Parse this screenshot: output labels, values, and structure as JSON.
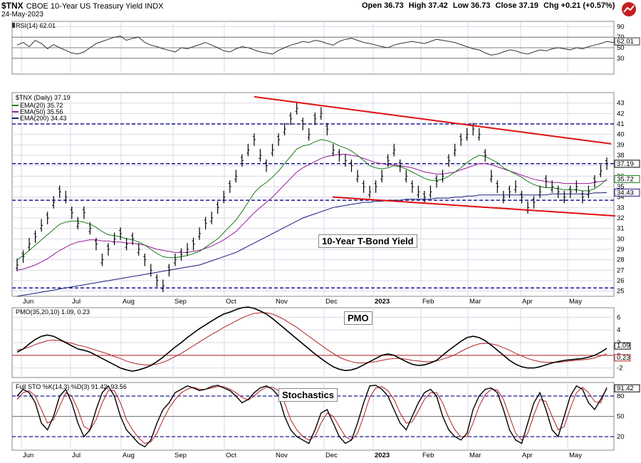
{
  "header": {
    "symbol": "$TNX",
    "description": "CBOE 10-Year US Treasury Yield INDX",
    "date": "24-May-2023",
    "open": "Open 36.73",
    "high": "High 37.42",
    "low": "Low 36.73",
    "close": "Close 37.19",
    "chg": "Chg +0.21 (+0.57%)"
  },
  "annotations": {
    "main": "10-Year T-Bond Yield",
    "pmo": "PMO",
    "sto": "Stochastics"
  },
  "chart_data": [
    {
      "type": "line",
      "title": "RSI(14) 62.01",
      "series": [
        {
          "name": "RSI(14)",
          "last": 62.01
        }
      ],
      "y_ticks": [
        90,
        70,
        50,
        30
      ],
      "reference_lines": [
        70,
        50,
        30
      ],
      "last_label": "62.01",
      "values": [
        55,
        60,
        52,
        64,
        58,
        48,
        56,
        50,
        45,
        40,
        38,
        42,
        50,
        58,
        62,
        66,
        70,
        72,
        64,
        68,
        70,
        60,
        55,
        52,
        48,
        45,
        42,
        50,
        48,
        52,
        56,
        60,
        55,
        50,
        44,
        42,
        48,
        52,
        50,
        46,
        42,
        40,
        38,
        45,
        50,
        55,
        58,
        62,
        60,
        64,
        62,
        58,
        55,
        62,
        66,
        68,
        64,
        60,
        58,
        55,
        52,
        50,
        55,
        58,
        60,
        62,
        60,
        58,
        62,
        66,
        64,
        62,
        60,
        56,
        52,
        48,
        46,
        40,
        36,
        38,
        42,
        46,
        44,
        40,
        38,
        42,
        46,
        44,
        48,
        50,
        48,
        46,
        50,
        48,
        52,
        55,
        58,
        62,
        60,
        62
      ]
    },
    {
      "type": "bar",
      "title": "$TNX (Daily) 37.19",
      "series": [
        {
          "name": "$TNX (Daily)",
          "last": 37.19
        },
        {
          "name": "EMA(20)",
          "last": 35.72,
          "color": "#1a7a1a"
        },
        {
          "name": "EMA(50)",
          "last": 35.56,
          "color": "#9a1a9a"
        },
        {
          "name": "EMA(200)",
          "last": 34.43,
          "color": "#1a1a80"
        }
      ],
      "x_labels": [
        "Jun",
        "Jul",
        "Aug",
        "Sep",
        "Oct",
        "Nov",
        "Dec",
        "2023",
        "Feb",
        "Mar",
        "Apr",
        "May"
      ],
      "y_ticks": [
        43,
        42,
        41,
        40,
        39,
        38,
        37,
        36,
        35,
        34,
        33,
        32,
        31,
        30,
        29,
        28,
        27,
        26,
        25
      ],
      "horizontal_levels": [
        41,
        37.2,
        33.7,
        25.3
      ],
      "right_labels": [
        "37.19",
        "35.72",
        "34.43"
      ],
      "trendlines": [
        {
          "from": [
            "Oct",
            43.6
          ],
          "to": [
            "Jun 2023",
            39.1
          ]
        },
        {
          "from": [
            "Dec",
            34.0
          ],
          "to": [
            "Jun 2023",
            32.2
          ]
        }
      ],
      "price": [
        27.5,
        28.3,
        29.5,
        30.2,
        31.3,
        32.0,
        33.5,
        34.5,
        34.0,
        32.5,
        31.5,
        32.5,
        31.0,
        29.5,
        28.0,
        29.0,
        30.0,
        30.5,
        29.5,
        30.0,
        29.0,
        28.0,
        27.0,
        26.0,
        25.5,
        27.0,
        28.0,
        28.5,
        29.0,
        29.5,
        30.5,
        31.5,
        32.0,
        33.0,
        34.0,
        35.0,
        36.0,
        37.5,
        38.5,
        39.5,
        38.0,
        37.0,
        38.5,
        39.5,
        40.5,
        41.5,
        42.5,
        41.0,
        40.0,
        41.5,
        42.0,
        40.5,
        38.5,
        38.0,
        37.5,
        37.0,
        36.0,
        35.0,
        34.5,
        35.0,
        36.0,
        37.5,
        38.5,
        37.0,
        36.0,
        35.0,
        34.5,
        34.0,
        34.5,
        35.5,
        36.0,
        37.5,
        38.5,
        39.5,
        40.0,
        40.5,
        40.0,
        38.0,
        36.0,
        35.0,
        34.0,
        34.5,
        35.0,
        34.0,
        33.0,
        33.5,
        34.5,
        35.5,
        35.0,
        34.5,
        34.0,
        34.5,
        35.0,
        34.0,
        34.5,
        35.5,
        36.5,
        37.19
      ],
      "ema20": [
        28.0,
        28.4,
        28.9,
        29.4,
        29.9,
        30.4,
        30.9,
        31.4,
        31.6,
        31.7,
        31.7,
        31.6,
        31.4,
        31.1,
        30.7,
        30.4,
        30.3,
        30.2,
        30.0,
        29.9,
        29.7,
        29.4,
        29.0,
        28.6,
        28.3,
        28.2,
        28.2,
        28.3,
        28.4,
        28.6,
        28.8,
        29.2,
        29.6,
        30.0,
        30.6,
        31.2,
        31.8,
        32.6,
        33.5,
        34.4,
        35.0,
        35.4,
        35.9,
        36.5,
        37.2,
        37.9,
        38.6,
        38.9,
        39.0,
        39.3,
        39.5,
        39.4,
        39.2,
        38.9,
        38.7,
        38.4,
        38.0,
        37.5,
        37.0,
        36.8,
        36.7,
        36.8,
        37.0,
        36.9,
        36.7,
        36.4,
        36.1,
        35.8,
        35.6,
        35.6,
        35.7,
        36.0,
        36.4,
        36.8,
        37.3,
        37.7,
        38.0,
        37.9,
        37.6,
        37.3,
        36.8,
        36.5,
        36.2,
        35.9,
        35.5,
        35.2,
        35.0,
        34.9,
        34.9,
        34.8,
        34.7,
        34.7,
        34.7,
        34.6,
        34.6,
        34.8,
        35.2,
        35.72
      ],
      "ema50": [
        27.0,
        27.1,
        27.3,
        27.5,
        27.8,
        28.1,
        28.5,
        28.9,
        29.2,
        29.5,
        29.7,
        29.8,
        29.9,
        29.9,
        29.8,
        29.8,
        29.7,
        29.7,
        29.6,
        29.6,
        29.5,
        29.4,
        29.2,
        29.0,
        28.9,
        28.8,
        28.7,
        28.7,
        28.7,
        28.8,
        28.9,
        29.1,
        29.3,
        29.6,
        29.9,
        30.3,
        30.7,
        31.3,
        31.9,
        32.5,
        33.0,
        33.5,
        34.0,
        34.6,
        35.2,
        35.8,
        36.4,
        36.8,
        37.1,
        37.4,
        37.7,
        37.9,
        38.0,
        38.1,
        38.1,
        38.0,
        37.9,
        37.7,
        37.5,
        37.3,
        37.2,
        37.1,
        37.1,
        37.0,
        36.9,
        36.8,
        36.6,
        36.4,
        36.3,
        36.2,
        36.2,
        36.3,
        36.4,
        36.6,
        36.8,
        37.0,
        37.2,
        37.2,
        37.1,
        36.9,
        36.7,
        36.5,
        36.3,
        36.1,
        35.9,
        35.7,
        35.6,
        35.5,
        35.4,
        35.4,
        35.3,
        35.3,
        35.3,
        35.3,
        35.3,
        35.4,
        35.5,
        35.56
      ],
      "ema200": [
        24.5,
        24.6,
        24.7,
        24.8,
        24.9,
        25.0,
        25.1,
        25.2,
        25.3,
        25.4,
        25.5,
        25.6,
        25.7,
        25.8,
        25.9,
        26.0,
        26.1,
        26.2,
        26.3,
        26.4,
        26.5,
        26.6,
        26.7,
        26.8,
        26.9,
        27.0,
        27.1,
        27.2,
        27.3,
        27.4,
        27.5,
        27.7,
        27.9,
        28.1,
        28.3,
        28.5,
        28.7,
        29.0,
        29.3,
        29.6,
        29.9,
        30.2,
        30.5,
        30.8,
        31.1,
        31.4,
        31.7,
        32.0,
        32.2,
        32.4,
        32.6,
        32.8,
        33.0,
        33.1,
        33.2,
        33.3,
        33.4,
        33.5,
        33.5,
        33.6,
        33.6,
        33.7,
        33.7,
        33.7,
        33.8,
        33.8,
        33.8,
        33.8,
        33.8,
        33.9,
        33.9,
        33.9,
        34.0,
        34.0,
        34.1,
        34.1,
        34.2,
        34.2,
        34.2,
        34.2,
        34.2,
        34.2,
        34.2,
        34.2,
        34.2,
        34.2,
        34.2,
        34.2,
        34.3,
        34.3,
        34.3,
        34.3,
        34.3,
        34.3,
        34.3,
        34.4,
        34.4,
        34.43
      ]
    },
    {
      "type": "line",
      "title": "PMO(35,20,10) 1.09, 0.23",
      "series": [
        {
          "name": "PMO",
          "last": 1.09,
          "color": "#000000"
        },
        {
          "name": "Signal",
          "last": 0.23,
          "color": "#b22222"
        }
      ],
      "y_ticks": [
        6,
        4,
        2,
        0,
        -2
      ],
      "right_labels": [
        "1.09",
        "0.23"
      ],
      "pmo": [
        0.5,
        1.0,
        1.8,
        2.5,
        3.0,
        3.2,
        3.0,
        2.5,
        2.0,
        1.5,
        1.0,
        0.8,
        0.5,
        0.0,
        -0.5,
        -1.0,
        -1.5,
        -2.0,
        -2.3,
        -2.5,
        -2.3,
        -2.0,
        -1.6,
        -1.0,
        -0.3,
        0.5,
        1.3,
        2.0,
        2.8,
        3.5,
        4.2,
        4.8,
        5.4,
        6.0,
        6.5,
        6.8,
        7.2,
        7.5,
        7.6,
        7.4,
        7.0,
        6.5,
        5.8,
        5.0,
        4.2,
        3.4,
        2.6,
        1.8,
        1.0,
        0.2,
        -0.5,
        -1.2,
        -1.8,
        -2.2,
        -2.4,
        -2.3,
        -2.0,
        -1.5,
        -1.0,
        -0.5,
        0.0,
        0.2,
        0.0,
        -0.5,
        -1.0,
        -1.4,
        -1.6,
        -1.5,
        -1.2,
        -0.8,
        0.0,
        0.8,
        1.5,
        2.2,
        2.8,
        3.0,
        2.8,
        2.3,
        1.6,
        0.8,
        0.0,
        -0.8,
        -1.4,
        -1.8,
        -2.0,
        -2.0,
        -1.8,
        -1.5,
        -1.2,
        -1.0,
        -0.8,
        -0.7,
        -0.6,
        -0.5,
        -0.3,
        0.0,
        0.5,
        1.09
      ],
      "signal": [
        0.8,
        1.0,
        1.3,
        1.7,
        2.0,
        2.3,
        2.4,
        2.3,
        2.1,
        1.9,
        1.6,
        1.4,
        1.1,
        0.8,
        0.5,
        0.2,
        -0.2,
        -0.5,
        -0.9,
        -1.2,
        -1.4,
        -1.5,
        -1.5,
        -1.4,
        -1.1,
        -0.7,
        -0.2,
        0.3,
        0.9,
        1.5,
        2.1,
        2.7,
        3.3,
        3.8,
        4.4,
        4.9,
        5.4,
        5.9,
        6.3,
        6.6,
        6.7,
        6.7,
        6.5,
        6.1,
        5.6,
        5.0,
        4.4,
        3.7,
        3.0,
        2.3,
        1.6,
        0.9,
        0.3,
        -0.3,
        -0.7,
        -1.0,
        -1.2,
        -1.2,
        -1.1,
        -1.0,
        -0.8,
        -0.6,
        -0.5,
        -0.5,
        -0.6,
        -0.8,
        -0.9,
        -1.0,
        -1.0,
        -0.9,
        -0.6,
        -0.3,
        0.1,
        0.6,
        1.1,
        1.5,
        1.8,
        1.9,
        1.8,
        1.6,
        1.2,
        0.8,
        0.3,
        -0.1,
        -0.5,
        -0.8,
        -1.0,
        -1.1,
        -1.1,
        -1.1,
        -1.0,
        -0.9,
        -0.8,
        -0.7,
        -0.6,
        -0.4,
        -0.1,
        0.23
      ]
    },
    {
      "type": "line",
      "title": "Full STO %K(14,3) %D(3) 91.42, 93.56",
      "series": [
        {
          "name": "%K(14,3)",
          "last": 91.42,
          "color": "#000000"
        },
        {
          "name": "%D(3)",
          "last": 93.56,
          "color": "#b22222"
        }
      ],
      "y_ticks": [
        80,
        50,
        20
      ],
      "reference_lines": [
        80,
        50,
        20
      ],
      "right_labels": [
        "91.42"
      ],
      "k": [
        80,
        90,
        85,
        70,
        40,
        30,
        50,
        80,
        90,
        70,
        40,
        20,
        30,
        60,
        85,
        95,
        80,
        50,
        30,
        20,
        10,
        5,
        15,
        40,
        60,
        70,
        85,
        90,
        95,
        92,
        88,
        90,
        94,
        96,
        92,
        88,
        80,
        70,
        75,
        85,
        92,
        95,
        90,
        80,
        50,
        30,
        20,
        15,
        10,
        30,
        55,
        60,
        40,
        20,
        10,
        15,
        40,
        70,
        95,
        96,
        90,
        80,
        60,
        40,
        30,
        50,
        70,
        85,
        90,
        80,
        50,
        30,
        20,
        15,
        25,
        60,
        80,
        90,
        92,
        85,
        60,
        30,
        15,
        10,
        40,
        70,
        85,
        60,
        30,
        20,
        50,
        80,
        95,
        90,
        70,
        60,
        75,
        91.42
      ],
      "d": [
        75,
        85,
        88,
        80,
        60,
        40,
        45,
        65,
        85,
        80,
        60,
        35,
        30,
        45,
        70,
        88,
        88,
        70,
        45,
        30,
        18,
        10,
        12,
        25,
        45,
        62,
        75,
        85,
        90,
        93,
        90,
        90,
        92,
        94,
        94,
        90,
        85,
        78,
        74,
        80,
        88,
        93,
        93,
        88,
        70,
        45,
        30,
        20,
        15,
        20,
        40,
        55,
        50,
        35,
        20,
        15,
        25,
        50,
        78,
        92,
        94,
        88,
        75,
        55,
        40,
        42,
        58,
        75,
        85,
        85,
        70,
        48,
        30,
        20,
        20,
        40,
        65,
        82,
        90,
        89,
        75,
        50,
        25,
        15,
        25,
        52,
        75,
        72,
        50,
        30,
        35,
        62,
        85,
        93,
        85,
        72,
        70,
        93.56
      ]
    }
  ]
}
